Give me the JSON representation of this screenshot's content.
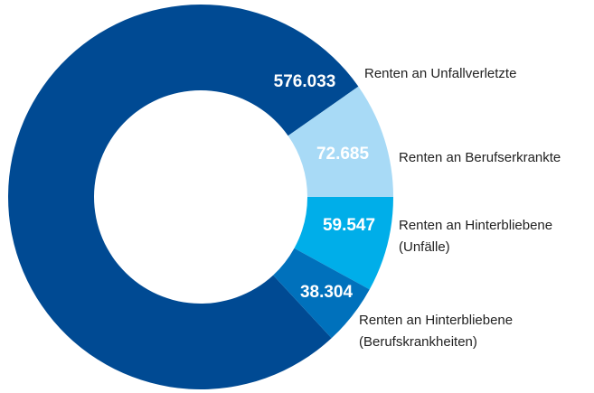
{
  "chart_data": {
    "type": "donut",
    "categories": [
      "Renten an Unfallverletzte",
      "Renten an Berufserkrankte",
      "Renten an Hinterbliebene (Unfälle)",
      "Renten an Hinterbliebene (Berufskrankheiten)"
    ],
    "values": [
      576033,
      72685,
      59547,
      38304
    ],
    "value_labels": [
      "576.033",
      "72.685",
      "59.547",
      "38.304"
    ],
    "colors": [
      "#004a93",
      "#a8daf6",
      "#00aee9",
      "#0071bc"
    ]
  }
}
